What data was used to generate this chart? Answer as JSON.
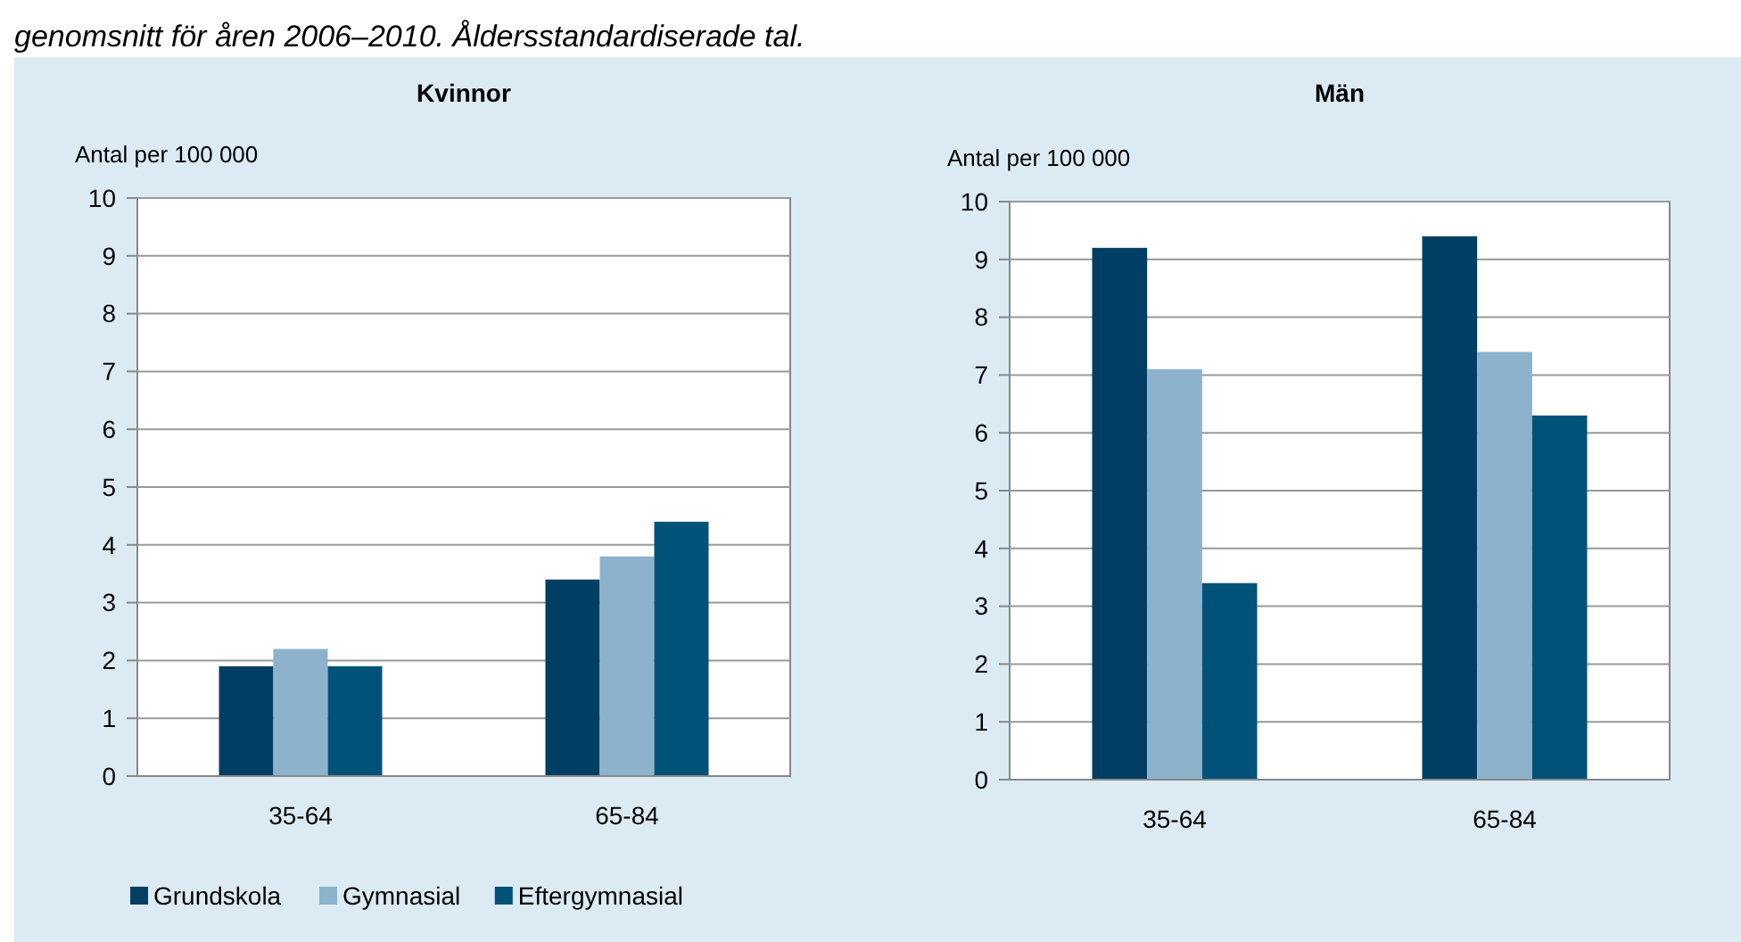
{
  "chart_data": [
    {
      "type": "bar",
      "title": "Kvinnor",
      "ylabel": "Antal per 100 000",
      "categories": [
        "35-64",
        "65-84"
      ],
      "series": [
        {
          "name": "Grundskola",
          "color": "#003f63",
          "values": [
            1.9,
            3.4
          ]
        },
        {
          "name": "Gymnasial",
          "color": "#8db2cc",
          "values": [
            2.2,
            3.8
          ]
        },
        {
          "name": "Eftergymnasial",
          "color": "#005279",
          "values": [
            1.9,
            4.4
          ]
        }
      ],
      "ylim": [
        0,
        10
      ],
      "yticks": [
        0,
        1,
        2,
        3,
        4,
        5,
        6,
        7,
        8,
        9,
        10
      ],
      "grid": "y",
      "legend": "bottom",
      "annotations": [
        "genomsnitt för åren 2006–2010. Åldersstandardiserade tal."
      ]
    },
    {
      "type": "bar",
      "title": "Män",
      "ylabel": "Antal per 100 000",
      "categories": [
        "35-64",
        "65-84"
      ],
      "series": [
        {
          "color": "#003f63",
          "values": [
            9.2,
            9.4
          ]
        },
        {
          "color": "#8db2cc",
          "values": [
            7.1,
            7.4
          ]
        },
        {
          "color": "#005279",
          "values": [
            3.4,
            6.3
          ]
        }
      ],
      "ylim": [
        0,
        10
      ],
      "yticks": [
        0,
        1,
        2,
        3,
        4,
        5,
        6,
        7,
        8,
        9,
        10
      ],
      "grid": "y"
    }
  ]
}
